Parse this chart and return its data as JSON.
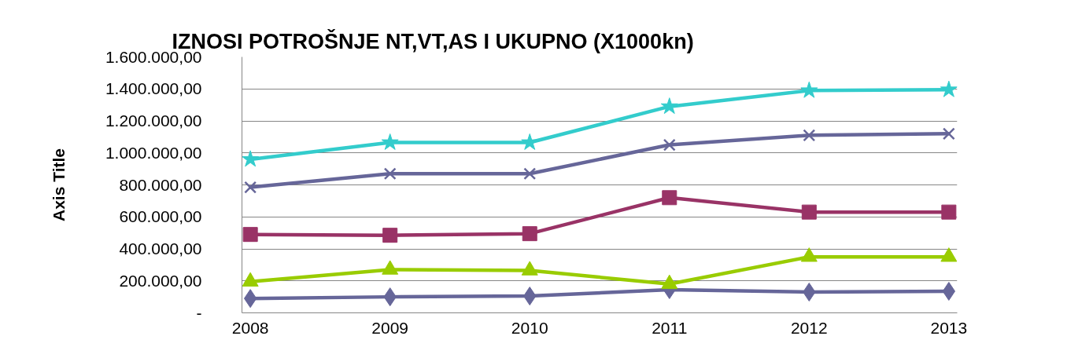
{
  "chart_data": {
    "type": "line",
    "title": "IZNOSI POTROŠNJE NT,VT,AS I UKUPNO (X1000kn)",
    "ylabel": "Axis Title",
    "categories": [
      "2008",
      "2009",
      "2010",
      "2011",
      "2012",
      "2013"
    ],
    "series": [
      {
        "color": "#666699",
        "marker": "diamond",
        "values": [
          90000,
          100000,
          105000,
          145000,
          130000,
          135000
        ]
      },
      {
        "color": "#993366",
        "marker": "square",
        "values": [
          490000,
          485000,
          495000,
          720000,
          630000,
          630000
        ]
      },
      {
        "color": "#99cc00",
        "marker": "triangle",
        "values": [
          195000,
          270000,
          265000,
          180000,
          350000,
          350000
        ]
      },
      {
        "color": "#666699",
        "marker": "cross",
        "values": [
          785000,
          870000,
          870000,
          1050000,
          1110000,
          1120000
        ]
      },
      {
        "color": "#33cccc",
        "marker": "star",
        "values": [
          960000,
          1065000,
          1065000,
          1290000,
          1390000,
          1395000
        ]
      }
    ],
    "ylim": [
      0,
      1600000
    ],
    "yticks": [
      {
        "value": 0,
        "label": "-"
      },
      {
        "value": 200000,
        "label": "200.000,00"
      },
      {
        "value": 400000,
        "label": "400.000,00"
      },
      {
        "value": 600000,
        "label": "600.000,00"
      },
      {
        "value": 800000,
        "label": "800.000,00"
      },
      {
        "value": 1000000,
        "label": "1.000.000,00"
      },
      {
        "value": 1200000,
        "label": "1.200.000,00"
      },
      {
        "value": 1400000,
        "label": "1.400.000,00"
      },
      {
        "value": 1600000,
        "label": "1.600.000,00"
      }
    ],
    "grid": "y"
  }
}
